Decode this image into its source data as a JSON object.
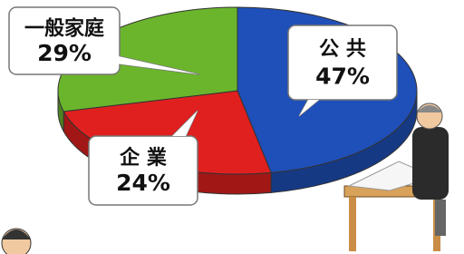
{
  "chart_data": {
    "type": "pie",
    "categories": [
      "公 共",
      "企 業",
      "一般家庭"
    ],
    "values": [
      47,
      24,
      29
    ],
    "value_labels": [
      "47%",
      "24%",
      "29%"
    ],
    "colors": [
      "#1f4fb8",
      "#e0201f",
      "#6bb52c"
    ]
  }
}
